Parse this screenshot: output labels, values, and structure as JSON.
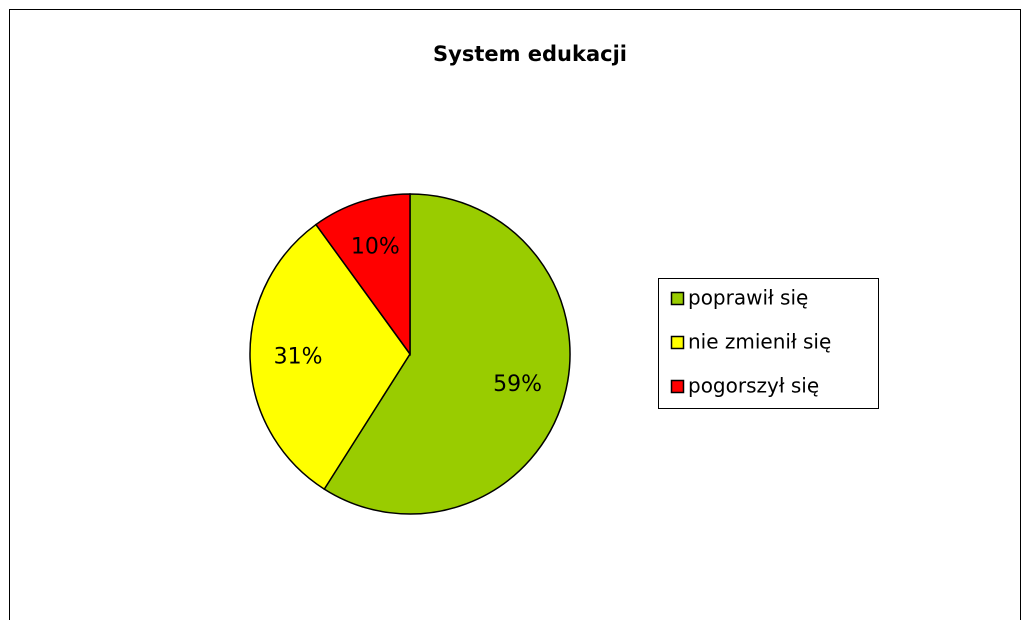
{
  "chart_data": {
    "type": "pie",
    "title": "System edukacji",
    "categories": [
      "poprawił się",
      "nie zmienił się",
      "pogorszył się"
    ],
    "values": [
      59,
      31,
      10
    ],
    "value_labels": [
      "59%",
      "31%",
      "10%"
    ],
    "colors": [
      "#99cc00",
      "#ffff00",
      "#ff0000"
    ],
    "legend": "right"
  }
}
